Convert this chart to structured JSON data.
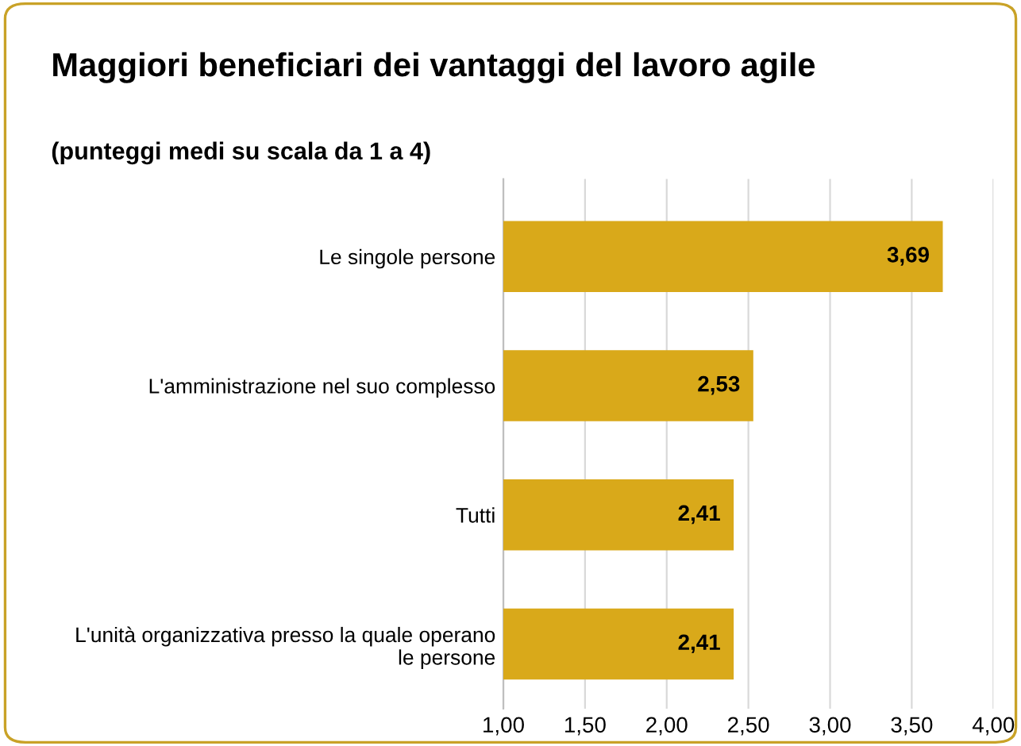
{
  "chart_data": {
    "type": "bar",
    "orientation": "horizontal",
    "title": "Maggiori beneficiari dei vantaggi del lavoro agile",
    "subtitle": "(punteggi medi su scala da 1 a 4)",
    "categories": [
      "Le singole persone",
      "L'amministrazione nel suo complesso",
      "Tutti",
      "L'unità organizzativa presso la quale operano\nle persone"
    ],
    "values": [
      3.69,
      2.53,
      2.41,
      2.41
    ],
    "value_labels": [
      "3,69",
      "2,53",
      "2,41",
      "2,41"
    ],
    "color": "#d9a91a",
    "xlim": [
      1,
      4
    ],
    "xticks": [
      {
        "value": 1,
        "label": "1,00"
      },
      {
        "value": 1.5,
        "label": "1,50"
      },
      {
        "value": 2,
        "label": "2,00"
      },
      {
        "value": 2.5,
        "label": "2,50"
      },
      {
        "value": 3,
        "label": "3,00"
      },
      {
        "value": 3.5,
        "label": "3,50"
      },
      {
        "value": 4,
        "label": "4,00"
      }
    ],
    "grid": "x"
  }
}
